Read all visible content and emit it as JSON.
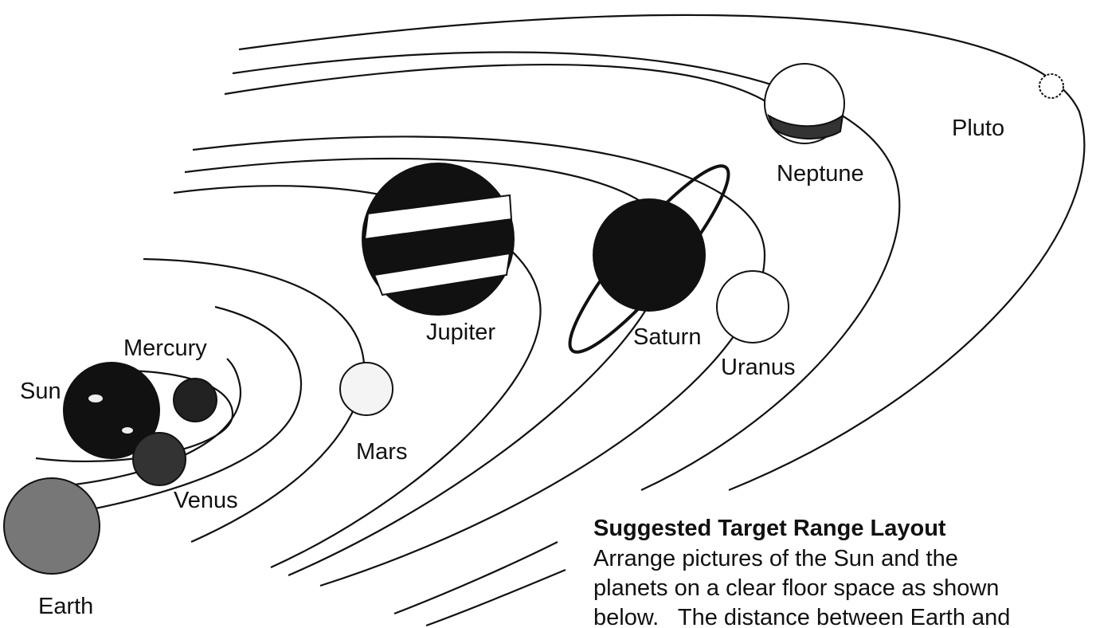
{
  "labels": {
    "sun": "Sun",
    "mercury": "Mercury",
    "venus": "Venus",
    "earth": "Earth",
    "mars": "Mars",
    "jupiter": "Jupiter",
    "saturn": "Saturn",
    "uranus": "Uranus",
    "neptune": "Neptune",
    "pluto": "Pluto"
  },
  "caption": {
    "title": "Suggested Target Range Layout",
    "lines": [
      "Arrange pictures of the Sun and the",
      "planets on a clear floor space as shown",
      "below.   The distance between Earth and"
    ]
  }
}
